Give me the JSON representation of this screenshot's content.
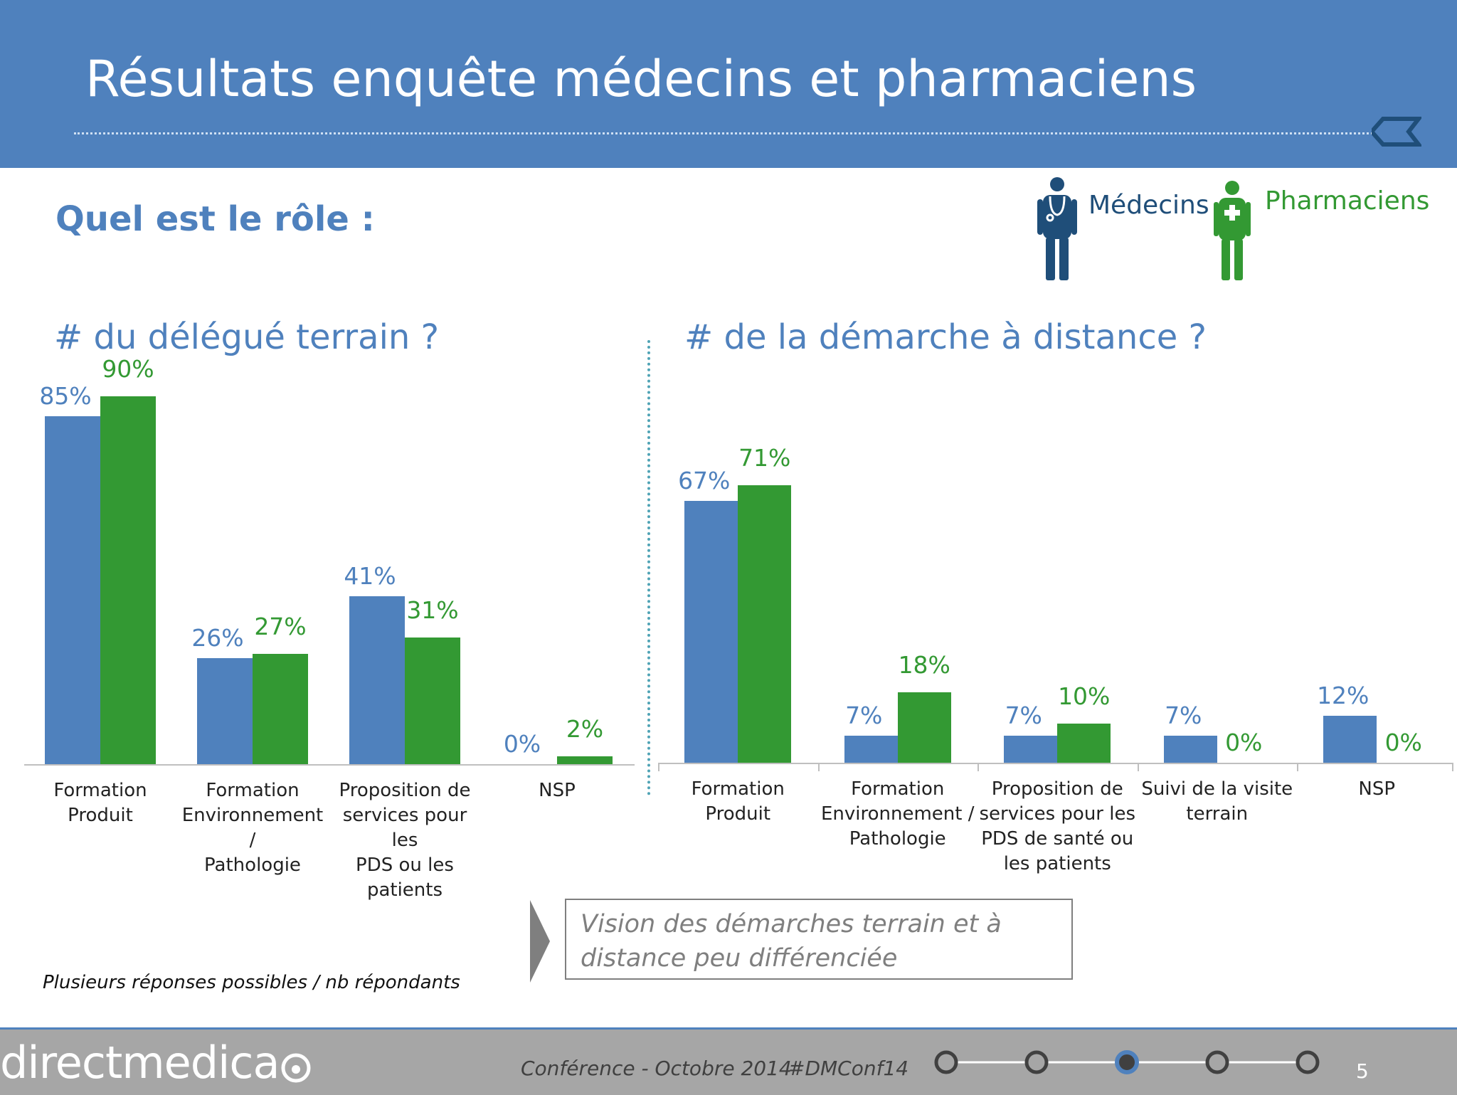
{
  "header": {
    "title": "Résultats enquête médecins et pharmaciens"
  },
  "subtitle": "Quel est le rôle :",
  "legend": {
    "medecins": "Médecins",
    "pharmaciens": "Pharmaciens"
  },
  "colors": {
    "medecins": "#4f81bd",
    "pharmaciens": "#339933",
    "header": "#4f81bd",
    "footer": "#a6a6a6"
  },
  "chart_data": [
    {
      "type": "bar",
      "title": "# du délégué terrain ?",
      "categories": [
        [
          "Formation Produit"
        ],
        [
          "Formation",
          "Environnement /",
          "Pathologie"
        ],
        [
          "Proposition de",
          "services pour les",
          "PDS ou les",
          "patients"
        ],
        [
          "NSP"
        ]
      ],
      "series": [
        {
          "name": "Médecins",
          "values": [
            85,
            26,
            41,
            0
          ],
          "labels": [
            "85%",
            "26%",
            "41%",
            "0%"
          ]
        },
        {
          "name": "Pharmaciens",
          "values": [
            90,
            27,
            31,
            2
          ],
          "labels": [
            "90%",
            "27%",
            "31%",
            "2%"
          ]
        }
      ],
      "ylim": [
        0,
        100
      ],
      "grid": false
    },
    {
      "type": "bar",
      "title": "# de la démarche à distance ?",
      "categories": [
        [
          "Formation Produit"
        ],
        [
          "Formation",
          "Environnement /",
          "Pathologie"
        ],
        [
          "Proposition de",
          "services pour les",
          "PDS de santé ou",
          "les patients"
        ],
        [
          "Suivi de la visite",
          "terrain"
        ],
        [
          "NSP"
        ]
      ],
      "series": [
        {
          "name": "Médecins",
          "values": [
            67,
            7,
            7,
            7,
            12
          ],
          "labels": [
            "67%",
            "7%",
            "7%",
            "7%",
            "12%"
          ]
        },
        {
          "name": "Pharmaciens",
          "values": [
            71,
            18,
            10,
            0,
            0
          ],
          "labels": [
            "71%",
            "18%",
            "10%",
            "0%",
            "0%"
          ]
        }
      ],
      "ylim": [
        0,
        100
      ],
      "grid": false
    }
  ],
  "footnote": "Plusieurs réponses possibles / nb répondants",
  "conclusion": "Vision des démarches terrain et à distance peu différenciée",
  "footer": {
    "brand": "directmedica",
    "conference": "Conférence - Octobre 2014",
    "hashtag": "#DMConf14",
    "progress": {
      "steps": 5,
      "current": 3
    },
    "page_number": "5"
  }
}
